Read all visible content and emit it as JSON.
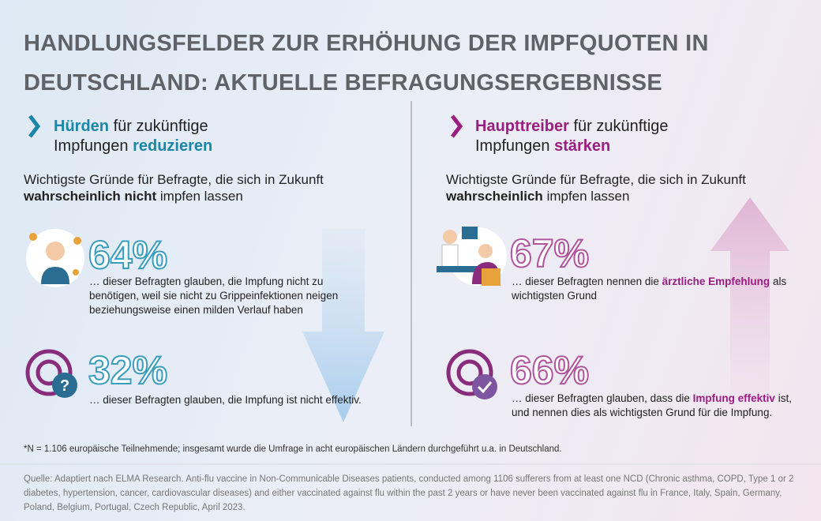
{
  "title": [
    "HANDLUNGSFELDER ZUR ERHÖHUNG DER IMPFQUOTEN IN",
    "DEUTSCHLAND: AKTUELLE BEFRAGUNGSERGEBNISSE"
  ],
  "left": {
    "heading": [
      [
        "Hürden",
        "für zukünftige"
      ],
      [
        "Impfungen",
        "reduzieren"
      ]
    ],
    "subtitle": [
      "Wichtigste Gründe für Befragte, die sich in Zukunft",
      "wahrscheinlich nicht",
      "impfen lassen"
    ],
    "items": [
      {
        "value": "64%",
        "text": "… dieser Befragten glauben, die Impfung nicht zu benötigen, weil sie nicht zu Grippeinfektionen neigen beziehungsweise einen milden Verlauf haben"
      },
      {
        "value": "32%",
        "text": "… dieser Befragten glauben, die Impfung ist nicht effektiv."
      }
    ]
  },
  "right": {
    "heading": [
      [
        "Haupttreiber",
        "für zukünftige"
      ],
      [
        "Impfungen",
        "stärken"
      ]
    ],
    "subtitle": [
      "Wichtigste Gründe für Befragte, die sich in Zukunft",
      "wahrscheinlich",
      "impfen lassen"
    ],
    "items": [
      {
        "value": "67%",
        "text": [
          "… dieser Befragten nennen die",
          "ärztliche Empfehlung",
          "als wichtigsten Grund"
        ]
      },
      {
        "value": "66%",
        "text": [
          "… dieser Befragten glauben, dass die",
          "Impfung effektiv",
          "ist, und nennen dies als wichtigsten Grund für die Impfung."
        ]
      }
    ]
  },
  "footnote": "*N = 1.106 europäische Teilnehmende; insgesamt wurde die Umfrage in acht europäischen Ländern durchgeführt u.a. in Deutschland.",
  "source": "Quelle: Adaptiert nach ELMA Research. Anti-flu vaccine in Non-Communicable Diseases patients, conducted among 1106 sufferers from at least one NCD (Chronic asthma, COPD, Type 1 or 2 diabetes, hypertension, cancer, cardiovascular diseases) and either vaccinated against flu within the past 2 years or have never been vaccinated against flu in France, Italy, Spain, Germany, Poland, Belgium, Portugal, Czech Republic, April 2023."
}
